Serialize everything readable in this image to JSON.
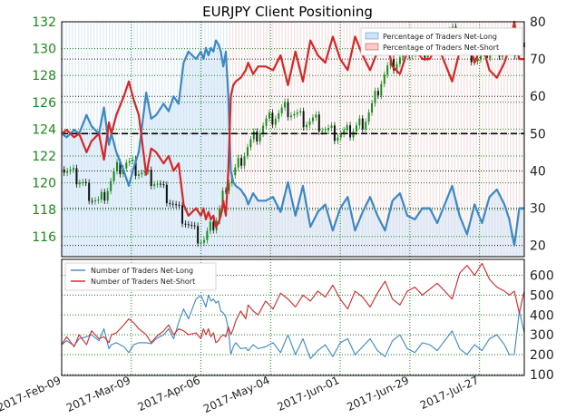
{
  "chart_data": [
    {
      "type": "line",
      "title": "EURJPY Client Positioning",
      "grid": true,
      "legend_position": "top-right",
      "price_axis": {
        "side": "left",
        "ylim": [
          114.5,
          132
        ],
        "ticks": [
          116,
          118,
          120,
          122,
          124,
          126,
          128,
          130,
          132
        ],
        "color": "#1a8a1a"
      },
      "percent_axis": {
        "side": "right",
        "ylim": [
          17,
          80
        ],
        "ticks": [
          20,
          30,
          40,
          50,
          60,
          70,
          80
        ]
      },
      "reference_line": {
        "value": 50,
        "axis": "percent_axis",
        "style": "dashed"
      },
      "x_ticks": [
        "2017-Feb-09",
        "2017-Mar-09",
        "2017-Apr-06",
        "2017-May-04",
        "2017-Jun-01",
        "2017-Jun-29",
        "2017-Jul-27"
      ],
      "x_range_days": [
        0,
        186
      ],
      "x_tick_days": [
        0,
        28,
        56,
        84,
        112,
        140,
        168
      ],
      "series": [
        {
          "name": "Percentage of Traders Net-Long",
          "color": "#3b88c4",
          "fill": "#cfe3f5",
          "x": [
            0,
            2,
            5,
            7,
            10,
            12,
            15,
            17,
            19,
            20,
            22,
            25,
            27,
            29,
            31,
            34,
            36,
            38,
            41,
            43,
            45,
            47,
            49,
            51,
            54,
            56,
            57,
            58,
            59,
            60,
            61,
            62,
            63,
            64,
            65,
            66,
            67,
            68,
            69,
            70,
            72,
            74,
            75,
            77,
            79,
            82,
            85,
            88,
            91,
            94,
            97,
            100,
            103,
            106,
            109,
            112,
            115,
            118,
            121,
            124,
            127,
            130,
            133,
            136,
            139,
            142,
            145,
            148,
            151,
            154,
            157,
            160,
            163,
            166,
            169,
            172,
            175,
            178,
            180,
            182,
            184,
            186
          ],
          "values": [
            50,
            49,
            51,
            50,
            55,
            52,
            50,
            57,
            47,
            50,
            45,
            40,
            36,
            41,
            45,
            61,
            54,
            55,
            58,
            56,
            60,
            58,
            69,
            72,
            70,
            72,
            70,
            73,
            71,
            73,
            72,
            75,
            74,
            72,
            68,
            72,
            60,
            40,
            37,
            36,
            35,
            33,
            31,
            34,
            32,
            32,
            33,
            29,
            37,
            28,
            36,
            25,
            29,
            31,
            24,
            30,
            33,
            24,
            29,
            33,
            28,
            24,
            32,
            34,
            28,
            27,
            30,
            30,
            26,
            31,
            36,
            28,
            23,
            31,
            26,
            33,
            35,
            31,
            27,
            20,
            30,
            30
          ]
        },
        {
          "name": "Percentage of Traders Net-Short",
          "color": "#d62728",
          "fill": "#f6cccc",
          "x": [
            0,
            2,
            5,
            7,
            10,
            12,
            15,
            17,
            19,
            20,
            22,
            25,
            27,
            29,
            31,
            34,
            36,
            38,
            41,
            43,
            45,
            47,
            49,
            51,
            54,
            56,
            57,
            58,
            59,
            60,
            61,
            62,
            63,
            64,
            65,
            66,
            67,
            68,
            69,
            70,
            72,
            74,
            75,
            77,
            79,
            82,
            85,
            88,
            91,
            94,
            97,
            100,
            103,
            106,
            109,
            112,
            115,
            118,
            121,
            124,
            127,
            130,
            133,
            136,
            139,
            142,
            145,
            148,
            151,
            154,
            157,
            160,
            163,
            166,
            169,
            172,
            175,
            178,
            180,
            182,
            184,
            186
          ],
          "values": [
            50,
            51,
            49,
            50,
            45,
            48,
            50,
            43,
            53,
            50,
            55,
            60,
            64,
            59,
            55,
            39,
            46,
            45,
            42,
            44,
            40,
            42,
            31,
            28,
            30,
            28,
            30,
            27,
            29,
            27,
            28,
            25,
            26,
            28,
            32,
            28,
            40,
            60,
            63,
            64,
            65,
            67,
            69,
            66,
            68,
            68,
            67,
            71,
            63,
            72,
            64,
            75,
            71,
            69,
            76,
            70,
            67,
            76,
            71,
            67,
            72,
            76,
            68,
            66,
            72,
            73,
            70,
            70,
            74,
            69,
            64,
            72,
            77,
            69,
            74,
            67,
            65,
            69,
            73,
            80,
            70,
            70
          ]
        }
      ]
    },
    {
      "type": "line",
      "grid": true,
      "legend_position": "top-left",
      "ylim": [
        95,
        680
      ],
      "y_ticks": [
        100,
        200,
        300,
        400,
        500,
        600
      ],
      "x_range_days": [
        0,
        186
      ],
      "series": [
        {
          "name": "Number of Traders Net-Long",
          "color": "#3b88c4",
          "x": [
            0,
            2,
            5,
            7,
            10,
            12,
            15,
            17,
            19,
            20,
            22,
            25,
            27,
            29,
            31,
            34,
            36,
            38,
            41,
            43,
            45,
            47,
            49,
            51,
            54,
            56,
            57,
            58,
            59,
            60,
            61,
            62,
            63,
            64,
            65,
            66,
            67,
            68,
            69,
            70,
            72,
            74,
            75,
            77,
            79,
            82,
            85,
            88,
            91,
            94,
            97,
            100,
            103,
            106,
            109,
            112,
            115,
            118,
            121,
            124,
            127,
            130,
            133,
            136,
            139,
            142,
            145,
            148,
            151,
            154,
            157,
            160,
            163,
            166,
            169,
            172,
            175,
            178,
            180,
            182,
            184,
            186
          ],
          "values": [
            250,
            270,
            245,
            280,
            290,
            300,
            270,
            330,
            230,
            250,
            260,
            240,
            210,
            250,
            260,
            260,
            255,
            280,
            300,
            330,
            280,
            360,
            430,
            380,
            480,
            500,
            470,
            440,
            500,
            470,
            480,
            460,
            470,
            420,
            410,
            390,
            330,
            200,
            240,
            260,
            230,
            235,
            220,
            250,
            230,
            240,
            260,
            210,
            300,
            200,
            280,
            180,
            220,
            250,
            190,
            260,
            280,
            200,
            240,
            280,
            220,
            190,
            270,
            300,
            230,
            210,
            260,
            250,
            220,
            270,
            320,
            230,
            200,
            250,
            220,
            280,
            300,
            250,
            200,
            200,
            420,
            310
          ]
        },
        {
          "name": "Number of Traders Net-Short",
          "color": "#d62728",
          "x": [
            0,
            2,
            5,
            7,
            10,
            12,
            15,
            17,
            19,
            20,
            22,
            25,
            27,
            29,
            31,
            34,
            36,
            38,
            41,
            43,
            45,
            47,
            49,
            51,
            54,
            56,
            57,
            58,
            59,
            60,
            61,
            62,
            63,
            64,
            65,
            66,
            67,
            68,
            69,
            70,
            72,
            74,
            75,
            77,
            79,
            82,
            85,
            88,
            91,
            94,
            97,
            100,
            103,
            106,
            109,
            112,
            115,
            118,
            121,
            124,
            127,
            130,
            133,
            136,
            139,
            142,
            145,
            148,
            151,
            154,
            157,
            160,
            163,
            166,
            169,
            172,
            175,
            178,
            180,
            182,
            184,
            186
          ],
          "values": [
            250,
            290,
            240,
            300,
            250,
            320,
            280,
            290,
            260,
            300,
            310,
            350,
            380,
            360,
            330,
            300,
            260,
            290,
            320,
            350,
            300,
            330,
            320,
            300,
            310,
            280,
            330,
            300,
            330,
            290,
            310,
            260,
            270,
            290,
            300,
            290,
            340,
            300,
            330,
            370,
            420,
            380,
            450,
            420,
            400,
            470,
            430,
            510,
            480,
            440,
            500,
            470,
            520,
            490,
            550,
            480,
            430,
            520,
            490,
            440,
            510,
            570,
            480,
            450,
            520,
            540,
            500,
            530,
            560,
            520,
            480,
            610,
            650,
            600,
            660,
            580,
            540,
            520,
            500,
            520,
            410,
            520
          ]
        }
      ]
    }
  ]
}
